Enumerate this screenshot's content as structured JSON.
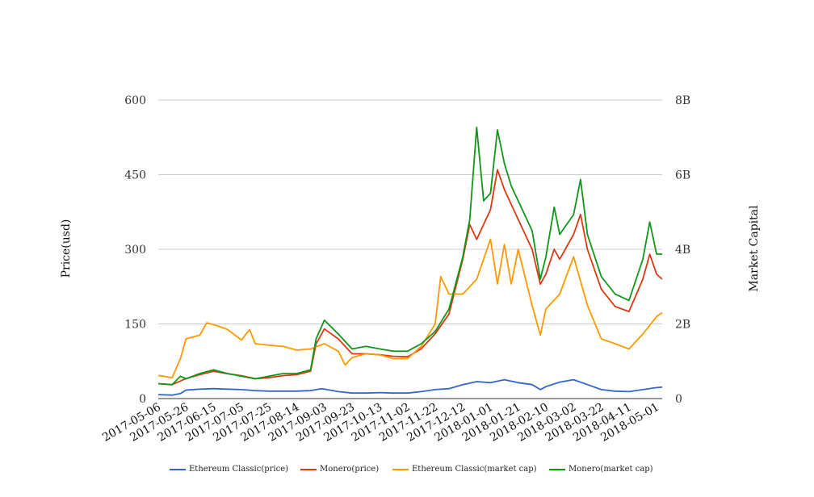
{
  "chart_data": {
    "type": "line",
    "title": "",
    "left_axis": {
      "label": "Price(usd)",
      "ylim": [
        0,
        600
      ],
      "ticks": [
        {
          "value": 0,
          "label": "0"
        },
        {
          "value": 150,
          "label": "150"
        },
        {
          "value": 300,
          "label": "300"
        },
        {
          "value": 450,
          "label": "450"
        },
        {
          "value": 600,
          "label": "600"
        }
      ]
    },
    "right_axis": {
      "label": "Market Capital",
      "ylim": [
        0,
        8000000000
      ],
      "ticks": [
        {
          "value": 0,
          "label": "0"
        },
        {
          "value": 2000000000,
          "label": "2B"
        },
        {
          "value": 4000000000,
          "label": "4B"
        },
        {
          "value": 6000000000,
          "label": "6B"
        },
        {
          "value": 8000000000,
          "label": "8B"
        }
      ]
    },
    "x_axis": {
      "range": [
        "2017-05-06",
        "2018-05-05"
      ],
      "tick_labels": [
        "2017-05-06",
        "2017-05-26",
        "2017-06-15",
        "2017-07-05",
        "2017-07-25",
        "2017-08-14",
        "2017-09-03",
        "2017-09-23",
        "2017-10-13",
        "2017-11-02",
        "2017-11-22",
        "2017-12-12",
        "2018-01-01",
        "2018-01-21",
        "2018-02-10",
        "2018-03-02",
        "2018-03-22",
        "2018-04-11",
        "2018-05-01"
      ]
    },
    "grid": true,
    "legend_position": "bottom",
    "series": [
      {
        "name": "Ethereum Classic(price)",
        "axis": "left",
        "color": "#3366cc",
        "points": [
          [
            "2017-05-06",
            8
          ],
          [
            "2017-05-16",
            7
          ],
          [
            "2017-05-22",
            10
          ],
          [
            "2017-05-26",
            17
          ],
          [
            "2017-06-05",
            19
          ],
          [
            "2017-06-15",
            20
          ],
          [
            "2017-06-25",
            19
          ],
          [
            "2017-07-05",
            18
          ],
          [
            "2017-07-15",
            16
          ],
          [
            "2017-07-25",
            15
          ],
          [
            "2017-08-04",
            15
          ],
          [
            "2017-08-14",
            15
          ],
          [
            "2017-08-24",
            16
          ],
          [
            "2017-09-01",
            20
          ],
          [
            "2017-09-03",
            19
          ],
          [
            "2017-09-13",
            14
          ],
          [
            "2017-09-23",
            11
          ],
          [
            "2017-10-03",
            11
          ],
          [
            "2017-10-13",
            12
          ],
          [
            "2017-10-23",
            11
          ],
          [
            "2017-11-02",
            11
          ],
          [
            "2017-11-12",
            14
          ],
          [
            "2017-11-22",
            18
          ],
          [
            "2017-12-02",
            20
          ],
          [
            "2017-12-12",
            28
          ],
          [
            "2017-12-22",
            34
          ],
          [
            "2018-01-01",
            32
          ],
          [
            "2018-01-11",
            38
          ],
          [
            "2018-01-21",
            32
          ],
          [
            "2018-01-31",
            28
          ],
          [
            "2018-02-06",
            18
          ],
          [
            "2018-02-10",
            24
          ],
          [
            "2018-02-20",
            33
          ],
          [
            "2018-03-02",
            38
          ],
          [
            "2018-03-12",
            28
          ],
          [
            "2018-03-22",
            18
          ],
          [
            "2018-04-01",
            15
          ],
          [
            "2018-04-11",
            14
          ],
          [
            "2018-04-21",
            18
          ],
          [
            "2018-05-01",
            22
          ],
          [
            "2018-05-05",
            23
          ]
        ]
      },
      {
        "name": "Monero(price)",
        "axis": "left",
        "color": "#dc3912",
        "points": [
          [
            "2017-05-06",
            30
          ],
          [
            "2017-05-16",
            28
          ],
          [
            "2017-05-26",
            40
          ],
          [
            "2017-06-05",
            48
          ],
          [
            "2017-06-15",
            55
          ],
          [
            "2017-06-25",
            50
          ],
          [
            "2017-07-05",
            46
          ],
          [
            "2017-07-15",
            40
          ],
          [
            "2017-07-25",
            42
          ],
          [
            "2017-08-04",
            46
          ],
          [
            "2017-08-14",
            48
          ],
          [
            "2017-08-24",
            55
          ],
          [
            "2017-08-28",
            110
          ],
          [
            "2017-09-03",
            140
          ],
          [
            "2017-09-13",
            120
          ],
          [
            "2017-09-23",
            90
          ],
          [
            "2017-10-03",
            90
          ],
          [
            "2017-10-13",
            88
          ],
          [
            "2017-10-23",
            85
          ],
          [
            "2017-11-02",
            84
          ],
          [
            "2017-11-12",
            100
          ],
          [
            "2017-11-22",
            130
          ],
          [
            "2017-12-02",
            170
          ],
          [
            "2017-12-12",
            280
          ],
          [
            "2017-12-17",
            350
          ],
          [
            "2017-12-22",
            320
          ],
          [
            "2018-01-01",
            380
          ],
          [
            "2018-01-06",
            460
          ],
          [
            "2018-01-11",
            420
          ],
          [
            "2018-01-21",
            360
          ],
          [
            "2018-01-31",
            300
          ],
          [
            "2018-02-06",
            230
          ],
          [
            "2018-02-10",
            250
          ],
          [
            "2018-02-16",
            300
          ],
          [
            "2018-02-20",
            280
          ],
          [
            "2018-03-02",
            330
          ],
          [
            "2018-03-07",
            370
          ],
          [
            "2018-03-12",
            300
          ],
          [
            "2018-03-22",
            220
          ],
          [
            "2018-04-01",
            185
          ],
          [
            "2018-04-11",
            175
          ],
          [
            "2018-04-21",
            240
          ],
          [
            "2018-04-26",
            290
          ],
          [
            "2018-05-01",
            250
          ],
          [
            "2018-05-05",
            240
          ]
        ]
      },
      {
        "name": "Ethereum Classic(market cap)",
        "axis": "right",
        "color": "#ff9900",
        "points": [
          [
            "2017-05-06",
            620000000
          ],
          [
            "2017-05-16",
            560000000
          ],
          [
            "2017-05-22",
            1070000000
          ],
          [
            "2017-05-26",
            1600000000
          ],
          [
            "2017-06-05",
            1700000000
          ],
          [
            "2017-06-10",
            2030000000
          ],
          [
            "2017-06-15",
            1980000000
          ],
          [
            "2017-06-25",
            1850000000
          ],
          [
            "2017-07-05",
            1570000000
          ],
          [
            "2017-07-11",
            1850000000
          ],
          [
            "2017-07-15",
            1470000000
          ],
          [
            "2017-07-25",
            1430000000
          ],
          [
            "2017-08-04",
            1400000000
          ],
          [
            "2017-08-14",
            1300000000
          ],
          [
            "2017-08-24",
            1330000000
          ],
          [
            "2017-09-03",
            1470000000
          ],
          [
            "2017-09-13",
            1270000000
          ],
          [
            "2017-09-18",
            900000000
          ],
          [
            "2017-09-23",
            1100000000
          ],
          [
            "2017-10-03",
            1200000000
          ],
          [
            "2017-10-13",
            1170000000
          ],
          [
            "2017-10-23",
            1070000000
          ],
          [
            "2017-11-02",
            1070000000
          ],
          [
            "2017-11-12",
            1400000000
          ],
          [
            "2017-11-22",
            2000000000
          ],
          [
            "2017-11-26",
            3270000000
          ],
          [
            "2017-12-02",
            2800000000
          ],
          [
            "2017-12-12",
            2800000000
          ],
          [
            "2017-12-22",
            3200000000
          ],
          [
            "2018-01-01",
            4270000000
          ],
          [
            "2018-01-06",
            3070000000
          ],
          [
            "2018-01-11",
            4130000000
          ],
          [
            "2018-01-16",
            3070000000
          ],
          [
            "2018-01-21",
            4000000000
          ],
          [
            "2018-01-31",
            2500000000
          ],
          [
            "2018-02-06",
            1700000000
          ],
          [
            "2018-02-10",
            2400000000
          ],
          [
            "2018-02-20",
            2800000000
          ],
          [
            "2018-03-02",
            3800000000
          ],
          [
            "2018-03-12",
            2500000000
          ],
          [
            "2018-03-22",
            1600000000
          ],
          [
            "2018-04-01",
            1470000000
          ],
          [
            "2018-04-11",
            1330000000
          ],
          [
            "2018-04-21",
            1730000000
          ],
          [
            "2018-05-01",
            2200000000
          ],
          [
            "2018-05-05",
            2300000000
          ]
        ]
      },
      {
        "name": "Monero(market cap)",
        "axis": "right",
        "color": "#109618",
        "points": [
          [
            "2017-05-06",
            400000000
          ],
          [
            "2017-05-16",
            370000000
          ],
          [
            "2017-05-22",
            600000000
          ],
          [
            "2017-05-26",
            530000000
          ],
          [
            "2017-06-05",
            670000000
          ],
          [
            "2017-06-15",
            770000000
          ],
          [
            "2017-06-25",
            670000000
          ],
          [
            "2017-07-05",
            600000000
          ],
          [
            "2017-07-15",
            530000000
          ],
          [
            "2017-07-25",
            600000000
          ],
          [
            "2017-08-04",
            670000000
          ],
          [
            "2017-08-14",
            670000000
          ],
          [
            "2017-08-24",
            770000000
          ],
          [
            "2017-08-28",
            1600000000
          ],
          [
            "2017-09-03",
            2100000000
          ],
          [
            "2017-09-13",
            1730000000
          ],
          [
            "2017-09-23",
            1330000000
          ],
          [
            "2017-10-03",
            1400000000
          ],
          [
            "2017-10-13",
            1330000000
          ],
          [
            "2017-10-23",
            1270000000
          ],
          [
            "2017-11-02",
            1270000000
          ],
          [
            "2017-11-12",
            1470000000
          ],
          [
            "2017-11-22",
            1800000000
          ],
          [
            "2017-12-02",
            2400000000
          ],
          [
            "2017-12-12",
            3800000000
          ],
          [
            "2017-12-17",
            4800000000
          ],
          [
            "2017-12-22",
            7270000000
          ],
          [
            "2017-12-27",
            5300000000
          ],
          [
            "2018-01-01",
            5500000000
          ],
          [
            "2018-01-06",
            7200000000
          ],
          [
            "2018-01-11",
            6300000000
          ],
          [
            "2018-01-16",
            5700000000
          ],
          [
            "2018-01-21",
            5300000000
          ],
          [
            "2018-01-31",
            4500000000
          ],
          [
            "2018-02-06",
            3200000000
          ],
          [
            "2018-02-10",
            3800000000
          ],
          [
            "2018-02-16",
            5130000000
          ],
          [
            "2018-02-20",
            4400000000
          ],
          [
            "2018-03-02",
            4930000000
          ],
          [
            "2018-03-07",
            5870000000
          ],
          [
            "2018-03-12",
            4400000000
          ],
          [
            "2018-03-22",
            3270000000
          ],
          [
            "2018-04-01",
            2800000000
          ],
          [
            "2018-04-11",
            2630000000
          ],
          [
            "2018-04-21",
            3730000000
          ],
          [
            "2018-04-26",
            4730000000
          ],
          [
            "2018-05-01",
            3870000000
          ],
          [
            "2018-05-05",
            3870000000
          ]
        ]
      }
    ]
  }
}
